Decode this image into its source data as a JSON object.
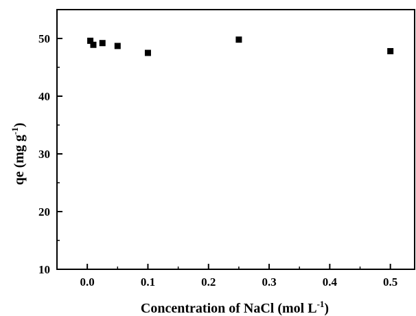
{
  "chart_data": {
    "type": "scatter",
    "title": "",
    "xlabel_main": "Concentration of NaCl (mol L",
    "xlabel_sup": "-1",
    "xlabel_close": ")",
    "ylabel_main": "qe (mg g",
    "ylabel_sup": "-1",
    "ylabel_close": ")",
    "xlim": [
      -0.05,
      0.54
    ],
    "ylim": [
      10,
      55
    ],
    "xticks": [
      0.0,
      0.1,
      0.2,
      0.3,
      0.4,
      0.5
    ],
    "xtick_labels": [
      "0.0",
      "0.1",
      "0.2",
      "0.3",
      "0.4",
      "0.5"
    ],
    "yticks": [
      10,
      20,
      30,
      40,
      50
    ],
    "ytick_labels": [
      "10",
      "20",
      "30",
      "40",
      "50"
    ],
    "grid": false,
    "marker": "square",
    "marker_color": "#000000",
    "points": [
      {
        "x": 0.005,
        "y": 49.6
      },
      {
        "x": 0.01,
        "y": 48.9
      },
      {
        "x": 0.025,
        "y": 49.2
      },
      {
        "x": 0.05,
        "y": 48.7
      },
      {
        "x": 0.1,
        "y": 47.5
      },
      {
        "x": 0.25,
        "y": 49.8
      },
      {
        "x": 0.5,
        "y": 47.8
      }
    ]
  }
}
